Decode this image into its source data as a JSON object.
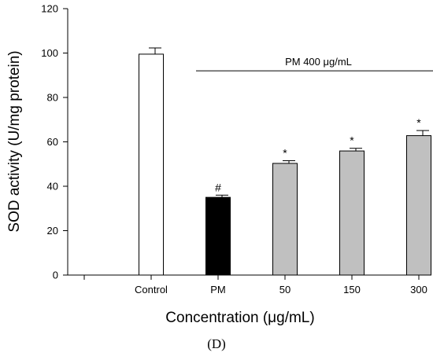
{
  "chart_data": {
    "type": "bar",
    "categories": [
      "Control",
      "PM",
      "50",
      "150",
      "300"
    ],
    "values": [
      99.5,
      35,
      50.3,
      55.9,
      62.8
    ],
    "errors": [
      2.8,
      1,
      1.2,
      1.2,
      2.3
    ],
    "bar_colors": [
      "#ffffff",
      "#000000",
      "#c0c0c0",
      "#c0c0c0",
      "#c0c0c0"
    ],
    "markers": [
      "",
      "#",
      "*",
      "*",
      "*"
    ],
    "xlabel": "Concentration (μg/mL)",
    "ylabel": "SOD activity (U/mg protein)",
    "ylim": [
      0,
      120
    ],
    "yticks": [
      0,
      20,
      40,
      60,
      80,
      100,
      120
    ],
    "grid": false,
    "annotation": {
      "text": "PM 400 μg/mL",
      "spans_categories": [
        "PM",
        "300"
      ],
      "y": 92
    },
    "panel_label": "(D)"
  }
}
